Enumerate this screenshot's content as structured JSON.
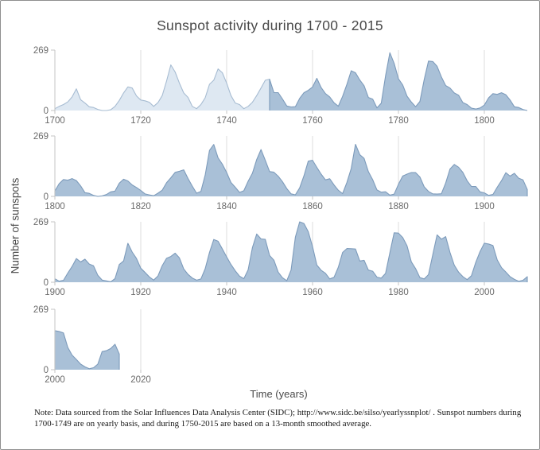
{
  "title": "Sunspot activity during 1700 - 2015",
  "ylabel": "Number of sunspots",
  "xlabel": "Time (years)",
  "note": {
    "line1": "Note: Data sourced from the Solar Influences Data Analysis Center (SIDC); http://www.sidc.be/silso/yearlyssnplot/ . Sunspot numbers during",
    "line2": "1700-1749 are on yearly basis, and during 1750-2015 are based on a 13-month smoothed average."
  },
  "colors": {
    "light_fill": "#dee8f2",
    "light_stroke": "#a7bcd2",
    "dark_fill": "#a9c0d7",
    "dark_stroke": "#7d9bbb",
    "grid": "#dcdcdc",
    "axis": "#c6c6c6",
    "tick_text": "#6a6a6a",
    "title_text": "#484848",
    "note_text": "#161616",
    "border": "#8f8f8f"
  },
  "chart_data": {
    "type": "area",
    "title": "Sunspot activity during 1700 - 2015",
    "xlabel": "Time (years)",
    "ylabel": "Number of sunspots",
    "grid": "vertical-only",
    "legend": "none",
    "ymax": 269,
    "yticks": [
      269,
      0
    ],
    "split_year": 1750,
    "split_meaning": "values before 1750 are yearly means (light fill); 1750-2015 are 13-month smoothed (dark fill)",
    "panels": [
      {
        "x_start": 1700,
        "x_end": 1810,
        "xticks": [
          1700,
          1720,
          1740,
          1760,
          1780,
          1800
        ]
      },
      {
        "x_start": 1800,
        "x_end": 1910,
        "xticks": [
          1800,
          1820,
          1840,
          1860,
          1880,
          1900
        ]
      },
      {
        "x_start": 1900,
        "x_end": 2010,
        "xticks": [
          1900,
          1920,
          1940,
          1960,
          1980,
          2000
        ]
      },
      {
        "x_start": 2000,
        "x_end": 2110,
        "xticks": [
          2000,
          2020
        ]
      }
    ],
    "years_start": 1700,
    "years_end": 2015,
    "values": [
      8.3,
      18.3,
      26.7,
      38.3,
      60,
      96.7,
      48.3,
      33.3,
      16.7,
      13.3,
      5,
      0,
      0,
      3.3,
      18.3,
      45,
      78.3,
      105,
      100,
      65,
      46.7,
      43.3,
      36.7,
      18.3,
      35,
      66.6,
      130.9,
      203.3,
      171.6,
      121.6,
      78.3,
      58.3,
      18.3,
      8.3,
      26.7,
      56.7,
      116.7,
      135,
      185,
      168.3,
      121.7,
      66.7,
      33.3,
      26.7,
      8.3,
      18.3,
      36.7,
      66.7,
      100,
      134.8,
      139,
      79.5,
      79.7,
      51.2,
      20.3,
      16,
      17,
      54,
      79.3,
      90,
      104.8,
      143.2,
      102.3,
      75.5,
      60.7,
      34.8,
      19,
      63,
      116.3,
      176.8,
      168,
      136,
      110.5,
      58,
      51,
      11.7,
      33,
      154.2,
      257.3,
      209.8,
      141.3,
      113.5,
      64.2,
      38,
      17,
      40.2,
      138.2,
      220,
      218.2,
      196.8,
      149.8,
      111,
      100,
      78.2,
      68.3,
      35.5,
      26.7,
      10.7,
      6.8,
      11.3,
      24.2,
      56.7,
      75,
      71.8,
      79.2,
      70.3,
      46.8,
      16.8,
      13.5,
      4.2,
      0,
      2.3,
      8.3,
      20.3,
      23.2,
      58.8,
      76.3,
      68.5,
      50.8,
      39.8,
      26.2,
      11,
      6.6,
      3,
      14.2,
      27.7,
      60.5,
      82.7,
      107,
      111.7,
      118.2,
      79.7,
      45.8,
      14.2,
      22,
      94.8,
      204.5,
      231.3,
      171.2,
      143.3,
      106.2,
      61.8,
      40.7,
      17.7,
      25.3,
      67.3,
      103,
      164.2,
      208.3,
      160.3,
      110.3,
      107.7,
      90,
      65.3,
      34.7,
      11.2,
      7.2,
      38,
      91.7,
      156.8,
      160.8,
      129.3,
      99,
      73.7,
      78.5,
      51,
      27.3,
      12.3,
      62.3,
      123.8,
      232,
      185.3,
      169.2,
      110.2,
      74.5,
      28.5,
      18.8,
      20.5,
      5.7,
      10,
      53.7,
      90.5,
      99,
      106.1,
      105.8,
      86.3,
      42.4,
      21.8,
      11.2,
      10.4,
      11.8,
      59.3,
      121.7,
      142,
      130,
      106.6,
      69.4,
      43.8,
      44.4,
      20.2,
      15.7,
      4.6,
      8.5,
      40.8,
      70.1,
      105.5,
      90.1,
      102.8,
      80.9,
      73.2,
      30.9,
      9.5,
      6,
      2.3,
      16.1,
      79,
      95,
      173.6,
      134.6,
      105.7,
      62.7,
      43.5,
      23.7,
      9.7,
      27.9,
      74,
      106.5,
      114.7,
      129.7,
      108.2,
      59.4,
      35.1,
      18.6,
      9.2,
      14.6,
      60.2,
      132.8,
      190.6,
      182.6,
      148,
      113,
      79.2,
      50.8,
      27.1,
      16.1,
      55.3,
      154.3,
      214.7,
      193,
      190.7,
      118.9,
      98.3,
      45,
      20.1,
      6.6,
      54.2,
      200.7,
      269,
      261.7,
      225.1,
      159,
      76.4,
      53.4,
      39.9,
      15,
      22,
      66.8,
      132.9,
      150,
      149.4,
      148,
      94.4,
      97.6,
      54.1,
      49.2,
      22.5,
      18.4,
      39.3,
      131,
      220.1,
      218.9,
      198.9,
      162.4,
      91,
      60.5,
      20.6,
      14.8,
      33.9,
      123,
      211.1,
      191.8,
      203.3,
      133,
      76.1,
      44.9,
      25.1,
      11.6,
      28.9,
      88.3,
      136.3,
      173.9,
      170.4,
      163.6,
      99.3,
      65.3,
      45.8,
      24.7,
      12.6,
      4.2,
      8.8,
      24.9,
      80.8,
      84.5,
      94,
      113.3,
      69.8
    ]
  }
}
